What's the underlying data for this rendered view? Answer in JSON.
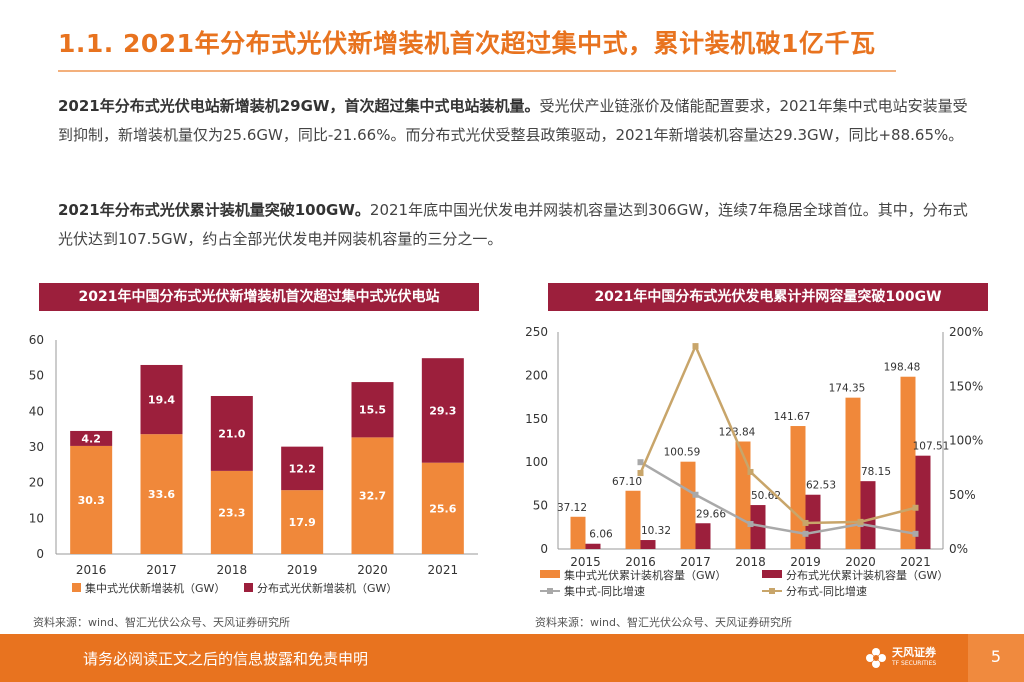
{
  "title": "1.1. 2021年分布式光伏新增装机首次超过集中式，累计装机破1亿千瓦",
  "para1": {
    "bold": "2021年分布式光伏电站新增装机29GW，首次超过集中式电站装机量。",
    "text": "受光伏产业链涨价及储能配置要求，2021年集中式电站安装量受到抑制，新增装机量仅为25.6GW，同比-21.66%。而分布式光伏受整县政策驱动，2021年新增装机容量达29.3GW，同比+88.65%。"
  },
  "para2": {
    "bold": "2021年分布式光伏累计装机量突破100GW。",
    "text": "2021年底中国光伏发电并网装机容量达到306GW，连续7年稳居全球首位。其中，分布式光伏达到107.5GW，约占全部光伏发电并网装机容量的三分之一。"
  },
  "chart_data": [
    {
      "type": "bar",
      "stacked": true,
      "title": "2021年中国分布式光伏新增装机首次超过集中式光伏电站",
      "categories": [
        "2016",
        "2017",
        "2018",
        "2019",
        "2020",
        "2021"
      ],
      "series": [
        {
          "name": "集中式光伏新增装机（GW）",
          "color": "#f0883a",
          "values": [
            30.3,
            33.6,
            23.3,
            17.9,
            32.7,
            25.6
          ]
        },
        {
          "name": "分布式光伏新增装机（GW）",
          "color": "#9c1f3c",
          "values": [
            4.2,
            19.4,
            21.0,
            12.2,
            15.5,
            29.3
          ]
        }
      ],
      "ylim": [
        0,
        60
      ],
      "yticks": [
        0,
        10,
        20,
        30,
        40,
        50,
        60
      ],
      "source": "资料来源：wind、智汇光伏公众号、天风证券研究所"
    },
    {
      "type": "bar",
      "title": "2021年中国分布式光伏发电累计并网容量突破100GW",
      "categories": [
        "2015",
        "2016",
        "2017",
        "2018",
        "2019",
        "2020",
        "2021"
      ],
      "series": [
        {
          "name": "集中式光伏累计装机容量（GW）",
          "color": "#f0883a",
          "axis": "left",
          "values": [
            37.12,
            67.1,
            100.59,
            123.84,
            141.67,
            174.35,
            198.48
          ]
        },
        {
          "name": "分布式光伏累计装机容量（GW）",
          "color": "#9c1f3c",
          "axis": "left",
          "values": [
            6.06,
            10.32,
            29.66,
            50.62,
            62.53,
            78.15,
            107.51
          ]
        },
        {
          "name": "集中式-同比增速",
          "color": "#a9a9a9",
          "type": "line",
          "axis": "right",
          "values": [
            null,
            80,
            50,
            23,
            14,
            23,
            14
          ]
        },
        {
          "name": "分布式-同比增速",
          "color": "#c8a56a",
          "type": "line",
          "axis": "right",
          "values": [
            null,
            70,
            187,
            71,
            24,
            25,
            38
          ]
        }
      ],
      "ylim": [
        0,
        250
      ],
      "yticks": [
        0,
        50,
        100,
        150,
        200,
        250
      ],
      "y2lim": [
        0,
        200
      ],
      "y2ticks": [
        "0%",
        "50%",
        "100%",
        "150%",
        "200%"
      ],
      "source": "资料来源：wind、智汇光伏公众号、天风证券研究所"
    }
  ],
  "footer": {
    "disclaimer": "请务必阅读正文之后的信息披露和免责申明",
    "logo_name": "天风证券",
    "logo_sub": "TF SECURITIES",
    "page": "5"
  }
}
